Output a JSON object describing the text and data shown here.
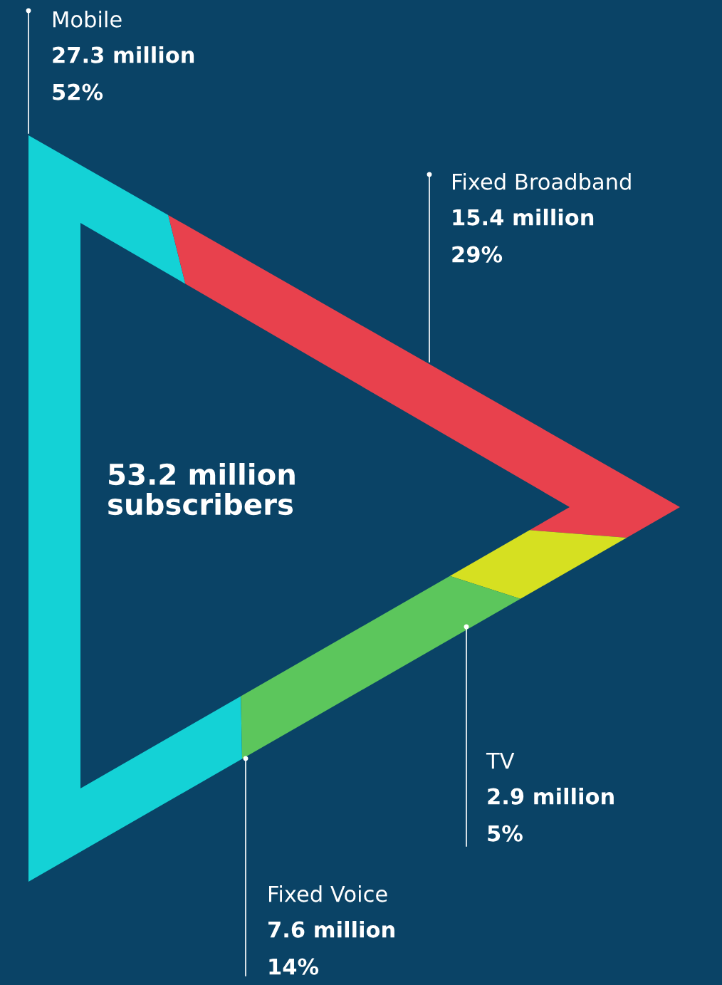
{
  "chart_data": {
    "type": "other",
    "categories": [
      "Mobile",
      "Fixed Broadband",
      "TV",
      "Fixed Voice"
    ],
    "values": [
      27.3,
      15.4,
      2.9,
      7.6
    ],
    "colors": [
      "#14d2d6",
      "#e8414d",
      "#d6e021",
      "#5cc65c"
    ],
    "value_labels": [
      "27.3 million",
      "15.4 million",
      "2.9 million",
      "7.6 million"
    ],
    "annotations": [
      "52%",
      "29%",
      "5%",
      "14%",
      "53.2 million\nsubscribers"
    ]
  }
}
